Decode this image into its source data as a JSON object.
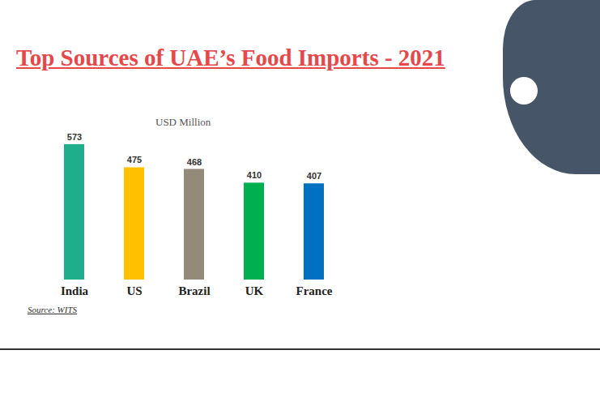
{
  "chart_data": {
    "type": "bar",
    "title": "Top Sources of UAE’s Food Imports - 2021",
    "subtitle": "USD Million",
    "source": "Source: WITS",
    "categories": [
      "India",
      "US",
      "Brazil",
      "UK",
      "France"
    ],
    "values": [
      573,
      475,
      468,
      410,
      407
    ],
    "colors": [
      "#1fae8c",
      "#ffc000",
      "#948a7a",
      "#00b050",
      "#0070c0"
    ],
    "ylim": [
      0,
      600
    ],
    "data_labels": true,
    "tick_labels": "x",
    "grid": false
  }
}
